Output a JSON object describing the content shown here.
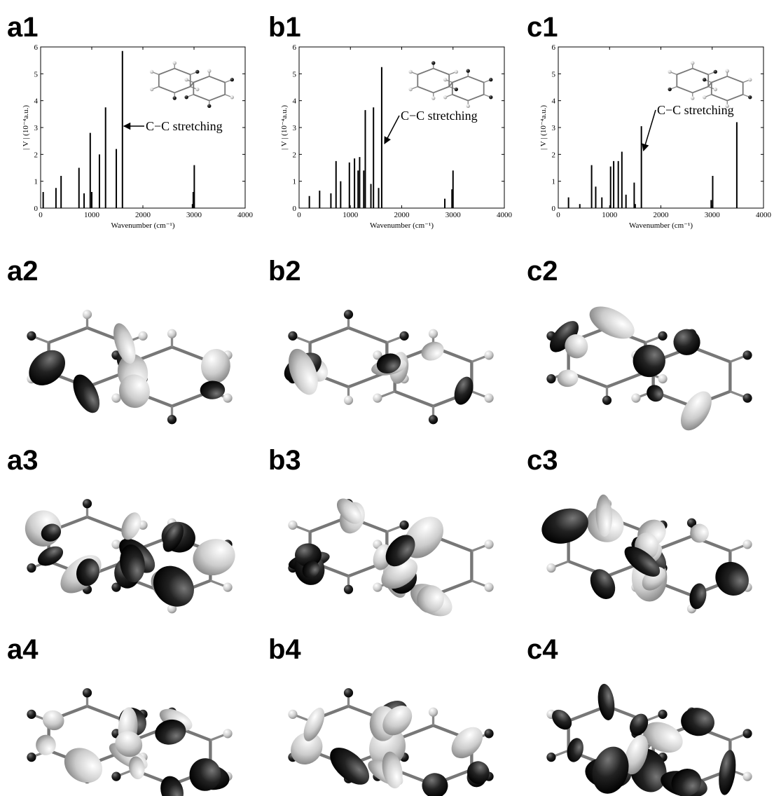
{
  "chart_data": [
    {
      "type": "stem",
      "label": "a1",
      "xlabel": "Wavenumber (cm⁻¹)",
      "ylabel": "| V | (10⁻⁴a.u.)",
      "x": [
        50,
        300,
        400,
        750,
        850,
        970,
        1000,
        1150,
        1270,
        1480,
        1600,
        2970,
        2985,
        3005
      ],
      "values": [
        0.6,
        0.75,
        1.2,
        1.5,
        0.55,
        2.8,
        0.6,
        2.0,
        3.75,
        2.2,
        5.85,
        0.15,
        0.6,
        1.6
      ],
      "color": "#000000",
      "xlim": [
        0,
        4000
      ],
      "xticks": [
        0,
        1000,
        2000,
        3000,
        4000
      ],
      "ylim": [
        0,
        6
      ],
      "yticks": [
        0,
        1,
        2,
        3,
        4,
        5,
        6
      ],
      "annotation": {
        "text": "C−C stretching",
        "x": 1600
      }
    },
    {
      "type": "stem",
      "label": "b1",
      "xlabel": "Wavenumber (cm⁻¹)",
      "ylabel": "| V | (10⁻⁴a.u.)",
      "x": [
        200,
        400,
        620,
        720,
        810,
        980,
        1080,
        1150,
        1180,
        1260,
        1290,
        1400,
        1450,
        1550,
        1610,
        2840,
        2980,
        3000
      ],
      "values": [
        0.45,
        0.65,
        0.55,
        1.75,
        1.0,
        1.7,
        1.85,
        1.4,
        1.9,
        1.4,
        3.65,
        0.9,
        3.75,
        0.75,
        5.25,
        0.35,
        0.7,
        1.4
      ],
      "color": "#000000",
      "xlim": [
        0,
        4000
      ],
      "xticks": [
        0,
        1000,
        2000,
        3000,
        4000
      ],
      "ylim": [
        0,
        6
      ],
      "yticks": [
        0,
        1,
        2,
        3,
        4,
        5,
        6
      ],
      "annotation": {
        "text": "C−C stretching",
        "x": 1610
      }
    },
    {
      "type": "stem",
      "label": "c1",
      "xlabel": "Wavenumber (cm⁻¹)",
      "ylabel": "| V | (10⁻⁴a.u.)",
      "x": [
        200,
        420,
        650,
        730,
        850,
        1020,
        1080,
        1170,
        1240,
        1320,
        1480,
        1500,
        1620,
        2980,
        3010,
        3480
      ],
      "values": [
        0.4,
        0.15,
        1.6,
        0.8,
        0.4,
        1.55,
        1.75,
        1.75,
        2.1,
        0.5,
        0.95,
        0.15,
        3.05,
        0.3,
        1.2,
        3.2
      ],
      "color": "#000000",
      "xlim": [
        0,
        4000
      ],
      "xticks": [
        0,
        1000,
        2000,
        3000,
        4000
      ],
      "ylim": [
        0,
        6
      ],
      "yticks": [
        0,
        1,
        2,
        3,
        4,
        5,
        6
      ],
      "annotation": {
        "text": "C−C stretching",
        "x": 1620
      }
    }
  ],
  "panels": [
    "a2",
    "b2",
    "c2",
    "a3",
    "b3",
    "c3",
    "a4",
    "b4",
    "c4"
  ]
}
